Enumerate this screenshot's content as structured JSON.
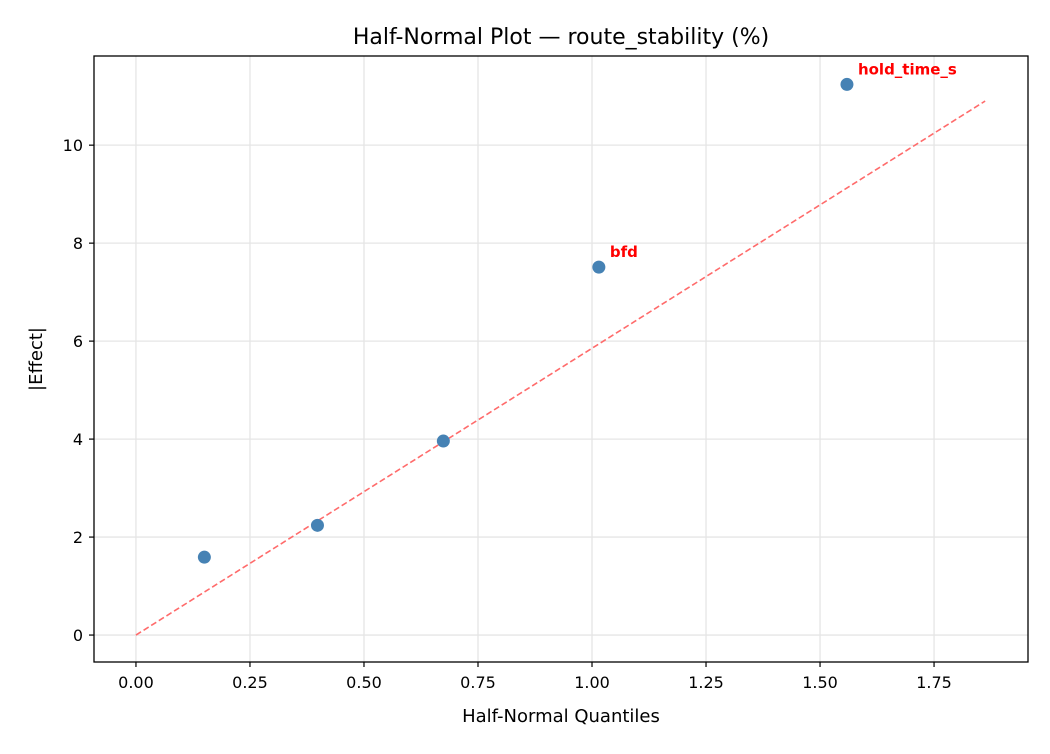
{
  "chart_data": {
    "type": "scatter",
    "title": "Half-Normal Plot — route_stability (%)",
    "xlabel": "Half-Normal Quantiles",
    "ylabel": "|Effect|",
    "xlim": [
      -0.092,
      1.956
    ],
    "ylim": [
      -0.55,
      11.82
    ],
    "xticks": [
      0.0,
      0.25,
      0.5,
      0.75,
      1.0,
      1.25,
      1.5,
      1.75
    ],
    "xtick_labels": [
      "0.00",
      "0.25",
      "0.50",
      "0.75",
      "1.00",
      "1.25",
      "1.50",
      "1.75"
    ],
    "yticks": [
      0,
      2,
      4,
      6,
      8,
      10
    ],
    "ytick_labels": [
      "0",
      "2",
      "4",
      "6",
      "8",
      "10"
    ],
    "grid": true,
    "points": [
      {
        "x": 0.15,
        "y": 1.59,
        "label": ""
      },
      {
        "x": 0.398,
        "y": 2.24,
        "label": ""
      },
      {
        "x": 0.674,
        "y": 3.96,
        "label": ""
      },
      {
        "x": 1.015,
        "y": 7.51,
        "label": "bfd"
      },
      {
        "x": 1.559,
        "y": 11.24,
        "label": "hold_time_s"
      }
    ],
    "reference_line": {
      "x": [
        0,
        1.862
      ],
      "y": [
        0,
        10.9
      ],
      "style": "dashed"
    },
    "colors": {
      "points": "#4682b4",
      "line": "#ff6b6b",
      "labels": "#ff0000",
      "grid": "#e5e5e5"
    }
  }
}
